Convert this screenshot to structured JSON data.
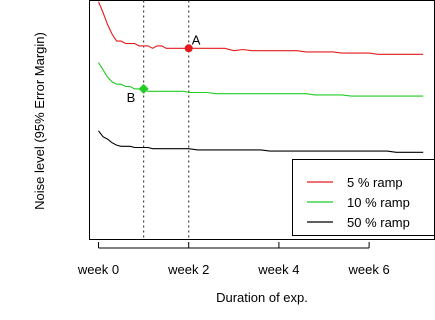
{
  "chart_data": {
    "type": "line",
    "xlabel": "Duration of exp.",
    "ylabel": "Noise level (95% Error Margin)",
    "x_ticks": [
      {
        "value": 0,
        "label": "week 0"
      },
      {
        "value": 2,
        "label": "week 2"
      },
      {
        "value": 4,
        "label": "week 4"
      },
      {
        "value": 6,
        "label": "week 6"
      }
    ],
    "xlim": [
      -0.2,
      7.45
    ],
    "ylim": [
      0,
      1
    ],
    "grid": false,
    "legend_position": "bottom-right",
    "vlines": [
      1,
      2
    ],
    "series": [
      {
        "name": "5 % ramp",
        "color": "#e41a1c",
        "x": [
          0,
          0.1,
          0.2,
          0.3,
          0.4,
          0.5,
          0.6,
          0.7,
          0.8,
          0.9,
          1.0,
          1.1,
          1.2,
          1.3,
          1.4,
          1.5,
          1.6,
          1.7,
          1.8,
          1.9,
          2.0,
          2.2,
          2.4,
          2.6,
          2.8,
          3.0,
          3.2,
          3.4,
          3.6,
          3.8,
          4.0,
          4.2,
          4.4,
          4.6,
          4.8,
          5.0,
          5.2,
          5.4,
          5.6,
          5.8,
          6.0,
          6.2,
          6.4,
          6.6,
          6.8,
          7.0,
          7.2
        ],
        "y": [
          0.995,
          0.95,
          0.9,
          0.86,
          0.83,
          0.83,
          0.82,
          0.82,
          0.82,
          0.81,
          0.81,
          0.81,
          0.8,
          0.81,
          0.81,
          0.8,
          0.8,
          0.8,
          0.8,
          0.8,
          0.8,
          0.8,
          0.8,
          0.8,
          0.8,
          0.79,
          0.795,
          0.79,
          0.79,
          0.79,
          0.79,
          0.79,
          0.79,
          0.785,
          0.785,
          0.785,
          0.785,
          0.78,
          0.78,
          0.78,
          0.78,
          0.775,
          0.775,
          0.775,
          0.775,
          0.775,
          0.775
        ]
      },
      {
        "name": "10 % ramp",
        "color": "#22cc22",
        "x": [
          0,
          0.1,
          0.2,
          0.3,
          0.4,
          0.5,
          0.6,
          0.7,
          0.8,
          0.9,
          1.0,
          1.1,
          1.2,
          1.3,
          1.4,
          1.5,
          1.6,
          1.7,
          1.8,
          1.9,
          2.0,
          2.2,
          2.4,
          2.6,
          2.8,
          3.0,
          3.2,
          3.4,
          3.6,
          3.8,
          4.0,
          4.2,
          4.4,
          4.6,
          4.8,
          5.0,
          5.2,
          5.4,
          5.6,
          5.8,
          6.0,
          6.2,
          6.4,
          6.6,
          6.8,
          7.0,
          7.2
        ],
        "y": [
          0.74,
          0.71,
          0.68,
          0.66,
          0.65,
          0.65,
          0.64,
          0.64,
          0.63,
          0.63,
          0.63,
          0.62,
          0.62,
          0.62,
          0.62,
          0.62,
          0.62,
          0.62,
          0.62,
          0.62,
          0.615,
          0.615,
          0.615,
          0.61,
          0.61,
          0.61,
          0.61,
          0.61,
          0.61,
          0.61,
          0.61,
          0.61,
          0.61,
          0.61,
          0.605,
          0.605,
          0.605,
          0.605,
          0.6,
          0.6,
          0.6,
          0.6,
          0.6,
          0.6,
          0.6,
          0.6,
          0.6
        ]
      },
      {
        "name": "50 % ramp",
        "color": "#000000",
        "x": [
          0,
          0.1,
          0.2,
          0.3,
          0.4,
          0.5,
          0.6,
          0.7,
          0.8,
          0.9,
          1.0,
          1.1,
          1.2,
          1.3,
          1.4,
          1.5,
          1.6,
          1.7,
          1.8,
          1.9,
          2.0,
          2.2,
          2.4,
          2.6,
          2.8,
          3.0,
          3.2,
          3.4,
          3.6,
          3.8,
          4.0,
          4.2,
          4.4,
          4.6,
          4.8,
          5.0,
          5.2,
          5.4,
          5.6,
          5.8,
          6.0,
          6.2,
          6.4,
          6.6,
          6.8,
          7.0,
          7.2
        ],
        "y": [
          0.455,
          0.43,
          0.42,
          0.405,
          0.395,
          0.39,
          0.39,
          0.39,
          0.385,
          0.385,
          0.385,
          0.385,
          0.38,
          0.38,
          0.38,
          0.38,
          0.38,
          0.38,
          0.38,
          0.38,
          0.38,
          0.375,
          0.375,
          0.375,
          0.375,
          0.375,
          0.375,
          0.375,
          0.375,
          0.37,
          0.37,
          0.37,
          0.37,
          0.37,
          0.37,
          0.37,
          0.37,
          0.37,
          0.37,
          0.37,
          0.37,
          0.37,
          0.37,
          0.365,
          0.365,
          0.365,
          0.365
        ]
      }
    ],
    "annotations": [
      {
        "label": "A",
        "x": 2,
        "y": 0.8,
        "color": "#e41a1c",
        "text_side": "upper-right"
      },
      {
        "label": "B",
        "x": 1,
        "y": 0.63,
        "color": "#22cc22",
        "text_side": "lower-left"
      }
    ]
  }
}
